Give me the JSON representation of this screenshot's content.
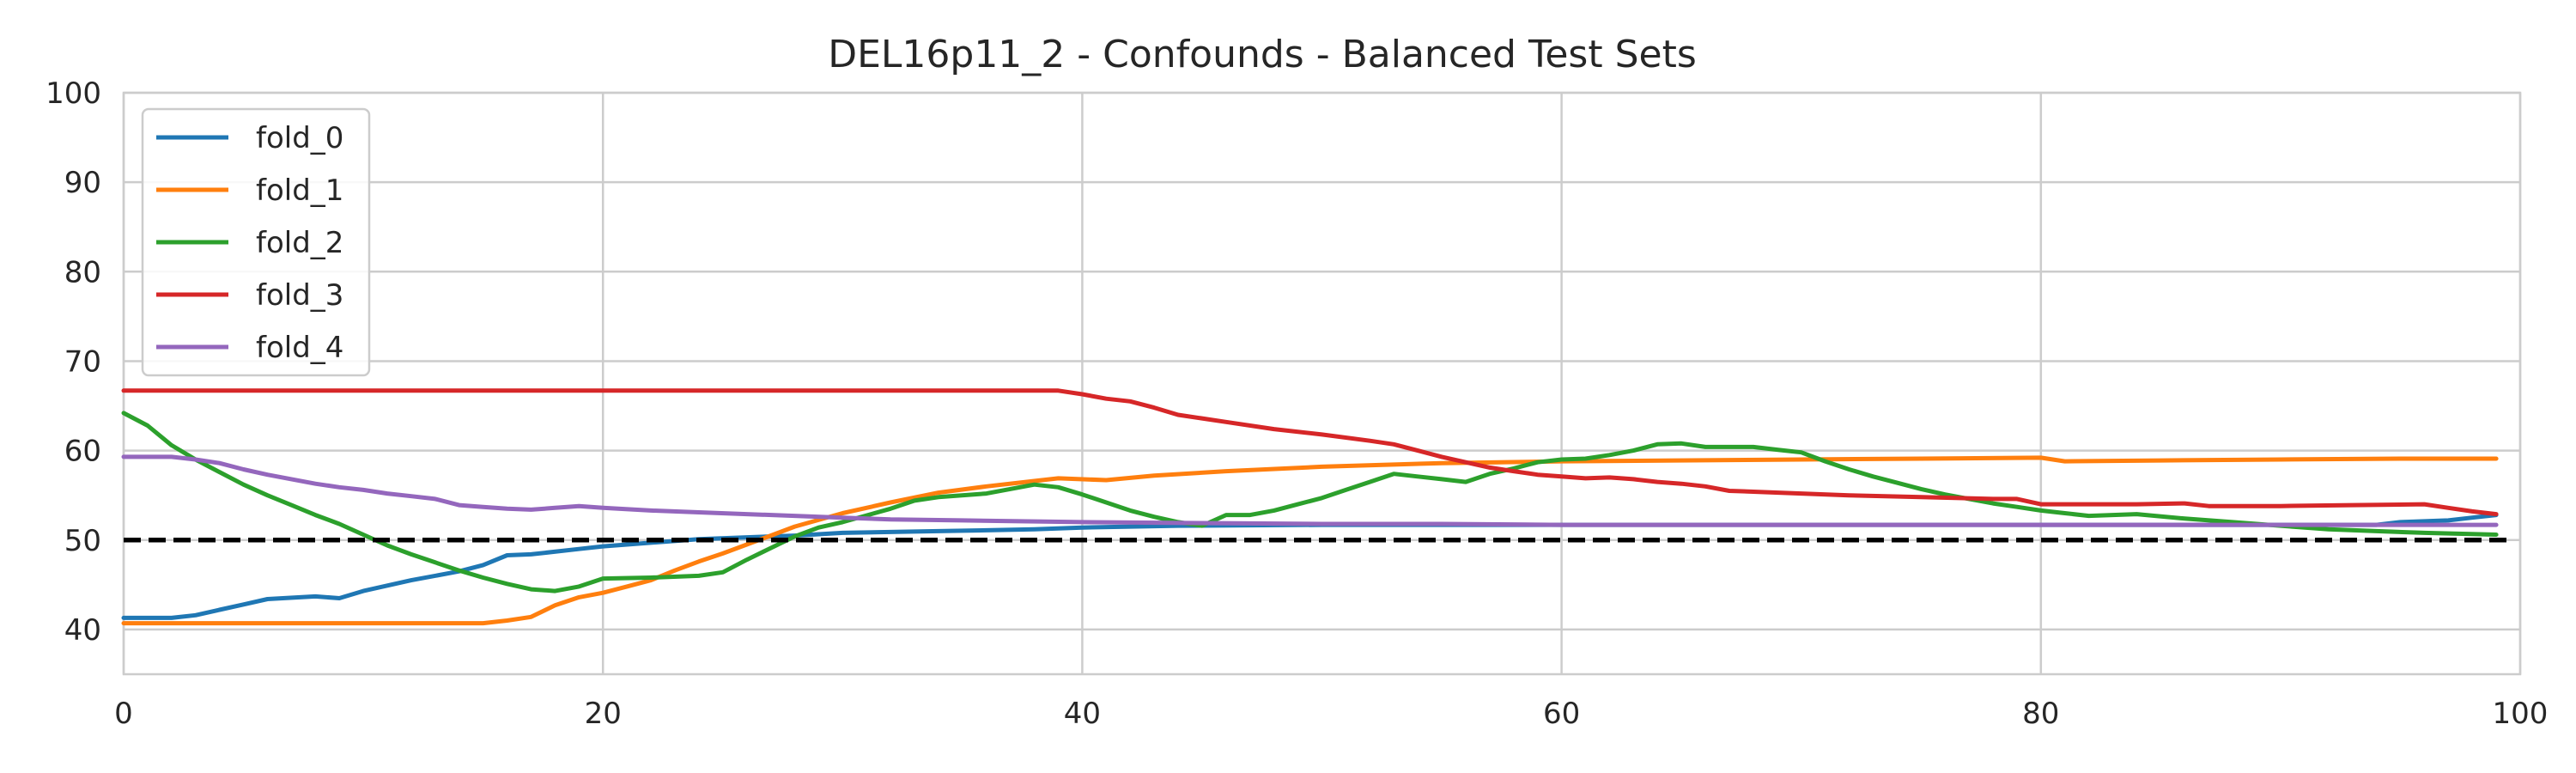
{
  "chart_data": {
    "type": "line",
    "title": "DEL16p11_2 - Confounds - Balanced Test Sets",
    "xlabel": "",
    "ylabel": "",
    "xlim": [
      0,
      100
    ],
    "ylim": [
      35,
      100
    ],
    "xticks": [
      0,
      20,
      40,
      60,
      80,
      100
    ],
    "yticks": [
      40,
      50,
      60,
      70,
      80,
      90,
      100
    ],
    "grid": true,
    "legend_position": "top-left",
    "reference_line": {
      "y": 50,
      "style": "dashed",
      "color": "#000000"
    },
    "series": [
      {
        "name": "fold_0",
        "color": "#1f77b4",
        "points": [
          [
            0,
            41.3
          ],
          [
            2,
            41.3
          ],
          [
            3,
            41.6
          ],
          [
            4,
            42.2
          ],
          [
            5,
            42.8
          ],
          [
            6,
            43.4
          ],
          [
            8,
            43.7
          ],
          [
            9,
            43.5
          ],
          [
            10,
            44.3
          ],
          [
            12,
            45.5
          ],
          [
            14,
            46.5
          ],
          [
            15,
            47.2
          ],
          [
            16,
            48.3
          ],
          [
            17,
            48.4
          ],
          [
            19,
            49.0
          ],
          [
            20,
            49.3
          ],
          [
            22,
            49.7
          ],
          [
            24,
            50.1
          ],
          [
            26,
            50.3
          ],
          [
            28,
            50.5
          ],
          [
            30,
            50.8
          ],
          [
            34,
            51.0
          ],
          [
            38,
            51.2
          ],
          [
            40,
            51.4
          ],
          [
            44,
            51.6
          ],
          [
            50,
            51.7
          ],
          [
            60,
            51.7
          ],
          [
            70,
            51.7
          ],
          [
            80,
            51.7
          ],
          [
            90,
            51.7
          ],
          [
            94,
            51.7
          ],
          [
            95,
            52.0
          ],
          [
            96,
            52.1
          ],
          [
            97,
            52.2
          ],
          [
            98,
            52.5
          ],
          [
            99,
            52.8
          ]
        ]
      },
      {
        "name": "fold_1",
        "color": "#ff7f0e",
        "points": [
          [
            0,
            40.7
          ],
          [
            5,
            40.7
          ],
          [
            10,
            40.7
          ],
          [
            15,
            40.7
          ],
          [
            16,
            41.0
          ],
          [
            17,
            41.4
          ],
          [
            18,
            42.7
          ],
          [
            19,
            43.6
          ],
          [
            20,
            44.1
          ],
          [
            21,
            44.8
          ],
          [
            22,
            45.5
          ],
          [
            23,
            46.6
          ],
          [
            24,
            47.6
          ],
          [
            25,
            48.5
          ],
          [
            26,
            49.5
          ],
          [
            27,
            50.5
          ],
          [
            28,
            51.5
          ],
          [
            30,
            53.0
          ],
          [
            32,
            54.2
          ],
          [
            34,
            55.3
          ],
          [
            36,
            56.0
          ],
          [
            38,
            56.6
          ],
          [
            39,
            56.9
          ],
          [
            41,
            56.7
          ],
          [
            43,
            57.2
          ],
          [
            46,
            57.7
          ],
          [
            50,
            58.2
          ],
          [
            55,
            58.6
          ],
          [
            60,
            58.8
          ],
          [
            70,
            59.0
          ],
          [
            75,
            59.1
          ],
          [
            80,
            59.2
          ],
          [
            81,
            58.8
          ],
          [
            85,
            58.9
          ],
          [
            90,
            59.0
          ],
          [
            95,
            59.1
          ],
          [
            99,
            59.1
          ]
        ]
      },
      {
        "name": "fold_2",
        "color": "#2ca02c",
        "points": [
          [
            0,
            64.2
          ],
          [
            1,
            62.8
          ],
          [
            2,
            60.6
          ],
          [
            3,
            59.0
          ],
          [
            4,
            57.6
          ],
          [
            5,
            56.2
          ],
          [
            6,
            55.0
          ],
          [
            7,
            53.9
          ],
          [
            8,
            52.8
          ],
          [
            9,
            51.8
          ],
          [
            10,
            50.6
          ],
          [
            11,
            49.4
          ],
          [
            12,
            48.4
          ],
          [
            13,
            47.5
          ],
          [
            14,
            46.6
          ],
          [
            15,
            45.8
          ],
          [
            16,
            45.1
          ],
          [
            17,
            44.5
          ],
          [
            18,
            44.3
          ],
          [
            19,
            44.8
          ],
          [
            20,
            45.7
          ],
          [
            22,
            45.8
          ],
          [
            24,
            46.0
          ],
          [
            25,
            46.4
          ],
          [
            26,
            47.8
          ],
          [
            27,
            49.1
          ],
          [
            28,
            50.4
          ],
          [
            29,
            51.4
          ],
          [
            30,
            52.0
          ],
          [
            32,
            53.5
          ],
          [
            33,
            54.4
          ],
          [
            34,
            54.8
          ],
          [
            36,
            55.2
          ],
          [
            38,
            56.2
          ],
          [
            39,
            55.9
          ],
          [
            40,
            55.1
          ],
          [
            41,
            54.2
          ],
          [
            42,
            53.3
          ],
          [
            43,
            52.6
          ],
          [
            44,
            52.0
          ],
          [
            45,
            51.6
          ],
          [
            46,
            52.8
          ],
          [
            47,
            52.8
          ],
          [
            48,
            53.3
          ],
          [
            49,
            54.0
          ],
          [
            50,
            54.7
          ],
          [
            51,
            55.6
          ],
          [
            52,
            56.5
          ],
          [
            53,
            57.4
          ],
          [
            54,
            57.1
          ],
          [
            55,
            56.8
          ],
          [
            56,
            56.5
          ],
          [
            57,
            57.4
          ],
          [
            58,
            58.0
          ],
          [
            59,
            58.7
          ],
          [
            60,
            59.0
          ],
          [
            61,
            59.1
          ],
          [
            62,
            59.5
          ],
          [
            63,
            60.0
          ],
          [
            64,
            60.7
          ],
          [
            65,
            60.8
          ],
          [
            66,
            60.4
          ],
          [
            67,
            60.4
          ],
          [
            68,
            60.4
          ],
          [
            69,
            60.1
          ],
          [
            70,
            59.8
          ],
          [
            71,
            58.8
          ],
          [
            72,
            57.9
          ],
          [
            73,
            57.1
          ],
          [
            74,
            56.4
          ],
          [
            75,
            55.7
          ],
          [
            76,
            55.1
          ],
          [
            77,
            54.6
          ],
          [
            78,
            54.1
          ],
          [
            79,
            53.7
          ],
          [
            80,
            53.3
          ],
          [
            81,
            53.0
          ],
          [
            82,
            52.7
          ],
          [
            84,
            52.9
          ],
          [
            86,
            52.4
          ],
          [
            88,
            52.0
          ],
          [
            90,
            51.6
          ],
          [
            92,
            51.2
          ],
          [
            94,
            51.0
          ],
          [
            96,
            50.8
          ],
          [
            99,
            50.6
          ]
        ]
      },
      {
        "name": "fold_3",
        "color": "#d62728",
        "points": [
          [
            0,
            66.7
          ],
          [
            10,
            66.7
          ],
          [
            20,
            66.7
          ],
          [
            30,
            66.7
          ],
          [
            39,
            66.7
          ],
          [
            40,
            66.3
          ],
          [
            41,
            65.8
          ],
          [
            42,
            65.5
          ],
          [
            43,
            64.8
          ],
          [
            44,
            64.0
          ],
          [
            46,
            63.2
          ],
          [
            48,
            62.4
          ],
          [
            50,
            61.8
          ],
          [
            52,
            61.1
          ],
          [
            53,
            60.7
          ],
          [
            54,
            60.0
          ],
          [
            55,
            59.3
          ],
          [
            56,
            58.7
          ],
          [
            57,
            58.1
          ],
          [
            58,
            57.7
          ],
          [
            59,
            57.3
          ],
          [
            60,
            57.1
          ],
          [
            61,
            56.9
          ],
          [
            62,
            57.0
          ],
          [
            63,
            56.8
          ],
          [
            64,
            56.5
          ],
          [
            65,
            56.3
          ],
          [
            66,
            56.0
          ],
          [
            67,
            55.5
          ],
          [
            68,
            55.4
          ],
          [
            70,
            55.2
          ],
          [
            72,
            55.0
          ],
          [
            75,
            54.8
          ],
          [
            78,
            54.6
          ],
          [
            79,
            54.6
          ],
          [
            80,
            54.0
          ],
          [
            82,
            54.0
          ],
          [
            84,
            54.0
          ],
          [
            86,
            54.1
          ],
          [
            87,
            53.8
          ],
          [
            90,
            53.8
          ],
          [
            93,
            53.9
          ],
          [
            96,
            54.0
          ],
          [
            97,
            53.6
          ],
          [
            98,
            53.2
          ],
          [
            99,
            52.9
          ]
        ]
      },
      {
        "name": "fold_4",
        "color": "#9467bd",
        "points": [
          [
            0,
            59.3
          ],
          [
            2,
            59.3
          ],
          [
            3,
            59.0
          ],
          [
            4,
            58.6
          ],
          [
            5,
            57.9
          ],
          [
            6,
            57.3
          ],
          [
            7,
            56.8
          ],
          [
            8,
            56.3
          ],
          [
            9,
            55.9
          ],
          [
            10,
            55.6
          ],
          [
            11,
            55.2
          ],
          [
            12,
            54.9
          ],
          [
            13,
            54.6
          ],
          [
            14,
            53.9
          ],
          [
            15,
            53.7
          ],
          [
            16,
            53.5
          ],
          [
            17,
            53.4
          ],
          [
            18,
            53.6
          ],
          [
            19,
            53.8
          ],
          [
            20,
            53.6
          ],
          [
            22,
            53.3
          ],
          [
            24,
            53.1
          ],
          [
            26,
            52.9
          ],
          [
            28,
            52.7
          ],
          [
            30,
            52.5
          ],
          [
            32,
            52.3
          ],
          [
            35,
            52.2
          ],
          [
            40,
            52.0
          ],
          [
            45,
            51.9
          ],
          [
            50,
            51.8
          ],
          [
            55,
            51.8
          ],
          [
            60,
            51.7
          ],
          [
            70,
            51.7
          ],
          [
            80,
            51.7
          ],
          [
            90,
            51.7
          ],
          [
            99,
            51.7
          ]
        ]
      }
    ]
  }
}
